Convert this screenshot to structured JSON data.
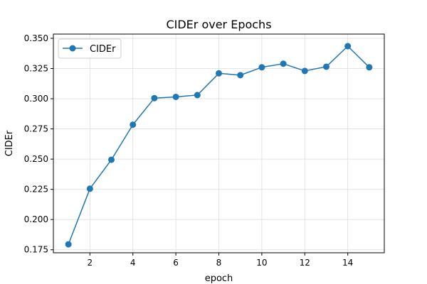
{
  "chart_data": {
    "type": "line",
    "title": "CIDEr over Epochs",
    "xlabel": "epoch",
    "ylabel": "CIDEr",
    "x": [
      1,
      2,
      3,
      4,
      5,
      6,
      7,
      8,
      9,
      10,
      11,
      12,
      13,
      14,
      15
    ],
    "series": [
      {
        "name": "CIDEr",
        "values": [
          0.1795,
          0.2255,
          0.2495,
          0.2785,
          0.3005,
          0.3015,
          0.303,
          0.321,
          0.3195,
          0.326,
          0.329,
          0.323,
          0.3265,
          0.3435,
          0.326
        ]
      }
    ],
    "xlim": [
      0.3,
      15.7
    ],
    "ylim": [
      0.1725,
      0.3535
    ],
    "xticks": [
      2,
      4,
      6,
      8,
      10,
      12,
      14
    ],
    "yticks": [
      0.175,
      0.2,
      0.225,
      0.25,
      0.275,
      0.3,
      0.325,
      0.35
    ],
    "grid": true,
    "legend_position": "top-left",
    "colors": {
      "series": "#1f77b4",
      "grid": "#dddddd",
      "axes": "#000000"
    }
  }
}
